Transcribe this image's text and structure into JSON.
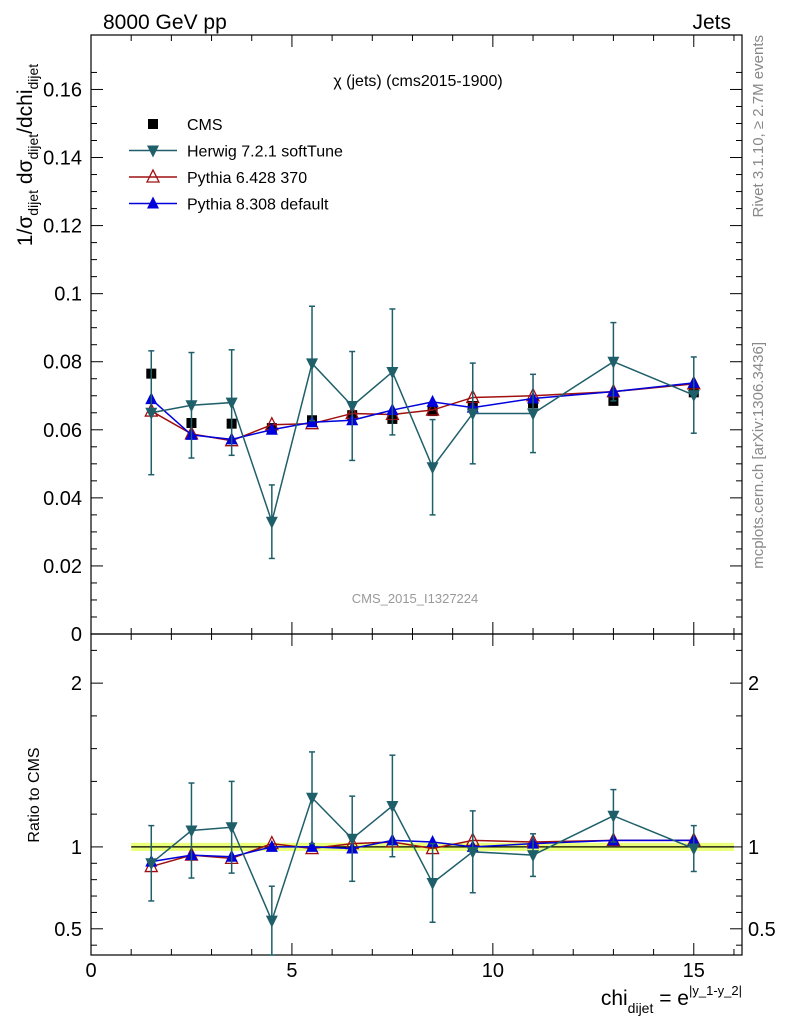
{
  "header": {
    "left": "8000 GeV pp",
    "right": "Jets",
    "side_top": "Rivet 3.1.10, ≥ 2.7M events",
    "side_bottom": "mcplots.cern.ch [arXiv:1306.3436]"
  },
  "chart_data": {
    "type": "scatter",
    "title": "χ (jets) (cms2015-1900)",
    "watermark": "CMS_2015_I1327224",
    "ylabel_main": "1/σ_dijet dσ_dijet/dchi_dijet",
    "ylabel_ratio": "Ratio to CMS",
    "xlabel": "chi_dijet = e^|y_1-y_2|",
    "xlim": [
      0,
      16.2
    ],
    "ylim_main": [
      0,
      0.176
    ],
    "ylim_ratio": [
      0.34,
      2.3
    ],
    "xticks": [
      0,
      5,
      10,
      15
    ],
    "yticks_main": [
      0,
      0.02,
      0.04,
      0.06,
      0.08,
      0.1,
      0.12,
      0.14,
      0.16
    ],
    "yticks_main_labels": [
      "0",
      "0.02",
      "0.04",
      "0.06",
      "0.08",
      "0.1",
      "0.12",
      "0.14",
      "0.16"
    ],
    "yticks_ratio": [
      0.5,
      1,
      2
    ],
    "yticks_ratio_labels": [
      "0.5",
      "1",
      "2"
    ],
    "legend_position": "top-left",
    "x": [
      1.5,
      2.5,
      3.5,
      4.5,
      5.5,
      6.5,
      7.5,
      8.5,
      9.5,
      11,
      13,
      15
    ],
    "series": [
      {
        "name": "CMS",
        "color": "#000000",
        "marker": "square",
        "values": [
          0.0765,
          0.062,
          0.0618,
          0.0605,
          0.0628,
          0.0643,
          0.0632,
          0.0655,
          0.067,
          0.0678,
          0.0685,
          0.071
        ]
      },
      {
        "name": "Herwig 7.2.1 softTune",
        "color": "#1f5f6a",
        "marker": "triangle-down",
        "values": [
          0.065,
          0.0672,
          0.068,
          0.033,
          0.0795,
          0.067,
          0.077,
          0.049,
          0.0648,
          0.0648,
          0.08,
          0.0702
        ],
        "err": [
          0.0182,
          0.0155,
          0.0155,
          0.0108,
          0.0168,
          0.016,
          0.0185,
          0.014,
          0.0148,
          0.0115,
          0.0115,
          0.0112
        ],
        "ratio": [
          0.9,
          1.1,
          1.12,
          0.55,
          1.3,
          1.05,
          1.25,
          0.78,
          0.97,
          0.95,
          1.19,
          0.99
        ],
        "ratio_err": [
          0.23,
          0.29,
          0.28,
          0.21,
          0.28,
          0.26,
          0.31,
          0.24,
          0.25,
          0.13,
          0.16,
          0.14
        ]
      },
      {
        "name": "Pythia 6.428 370",
        "color": "#a01010",
        "marker": "triangle-up-open",
        "values": [
          0.0655,
          0.0588,
          0.0568,
          0.0615,
          0.0618,
          0.0648,
          0.0645,
          0.0658,
          0.0695,
          0.07,
          0.0712,
          0.0735
        ],
        "ratio": [
          0.88,
          0.95,
          0.93,
          1.02,
          0.99,
          1.02,
          1.03,
          0.99,
          1.04,
          1.03,
          1.04,
          1.04
        ]
      },
      {
        "name": "Pythia 8.308 default",
        "color": "#0000dd",
        "marker": "triangle-up",
        "values": [
          0.069,
          0.0585,
          0.0572,
          0.06,
          0.0622,
          0.0628,
          0.0658,
          0.0682,
          0.0665,
          0.0692,
          0.0712,
          0.0738
        ],
        "ratio": [
          0.91,
          0.95,
          0.94,
          1.0,
          1.0,
          0.99,
          1.04,
          1.03,
          1.0,
          1.02,
          1.04,
          1.04
        ]
      }
    ],
    "band_color": "#eaff7a"
  }
}
